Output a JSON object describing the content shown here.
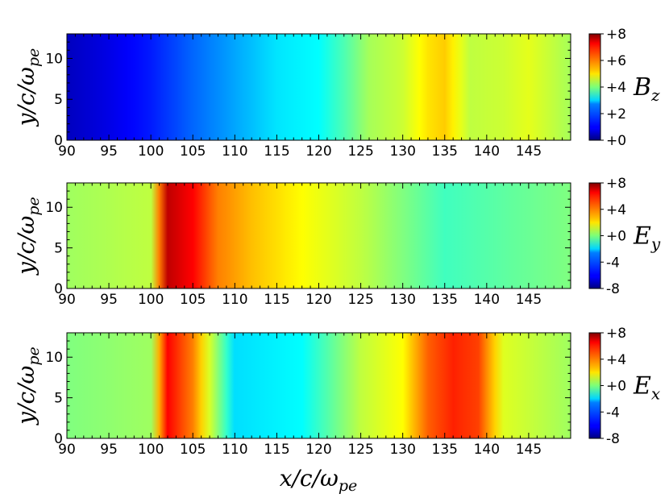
{
  "chart_data": [
    {
      "type": "heatmap",
      "quantity": "Bz",
      "colorbar_label": {
        "base": "B",
        "sub": "z"
      },
      "ylabel": "y/c/ωpe",
      "xlim": [
        90,
        150
      ],
      "ylim": [
        0,
        13
      ],
      "x_ticks": [
        "90",
        "95",
        "100",
        "105",
        "110",
        "115",
        "120",
        "125",
        "130",
        "135",
        "140",
        "145"
      ],
      "y_ticks": [
        "0",
        "5",
        "10"
      ],
      "colorbar_range": [
        0,
        8
      ],
      "colorbar_ticks": [
        "+0",
        "+2",
        "+4",
        "+6",
        "+8"
      ],
      "colormap": "jet",
      "profile_x": [
        90,
        95,
        100,
        105,
        110,
        115,
        120,
        123,
        126,
        130,
        133,
        135,
        138,
        142,
        145,
        150
      ],
      "profile_value": [
        0.5,
        0.8,
        1.2,
        1.8,
        2.3,
        2.8,
        3.0,
        3.6,
        4.3,
        4.6,
        5.2,
        5.4,
        4.5,
        4.6,
        4.8,
        4.3
      ]
    },
    {
      "type": "heatmap",
      "quantity": "Ey",
      "colorbar_label": {
        "base": "E",
        "sub": "y"
      },
      "ylabel": "y/c/ωpe",
      "xlim": [
        90,
        150
      ],
      "ylim": [
        0,
        13
      ],
      "x_ticks": [
        "90",
        "95",
        "100",
        "105",
        "110",
        "115",
        "120",
        "125",
        "130",
        "135",
        "140",
        "145"
      ],
      "y_ticks": [
        "0",
        "5",
        "10"
      ],
      "colorbar_range": [
        -8,
        8
      ],
      "colorbar_ticks": [
        "+8",
        "+4",
        "+0",
        "-4",
        "-8"
      ],
      "colormap": "jet",
      "profile_x": [
        90,
        100,
        102,
        105,
        108,
        112,
        118,
        125,
        135,
        150
      ],
      "profile_value": [
        0.5,
        1.0,
        7.0,
        6.0,
        4.0,
        3.0,
        2.0,
        1.0,
        -1.0,
        0.0
      ]
    },
    {
      "type": "heatmap",
      "quantity": "Ex",
      "colorbar_label": {
        "base": "E",
        "sub": "x"
      },
      "ylabel": "y/c/ωpe",
      "xlabel": "x/c/ωpe",
      "xlim": [
        90,
        150
      ],
      "ylim": [
        0,
        13
      ],
      "x_ticks": [
        "90",
        "95",
        "100",
        "105",
        "110",
        "115",
        "120",
        "125",
        "130",
        "135",
        "140",
        "145"
      ],
      "y_ticks": [
        "0",
        "5",
        "10"
      ],
      "colorbar_range": [
        -8,
        8
      ],
      "colorbar_ticks": [
        "+8",
        "+4",
        "+0",
        "-4",
        "-8"
      ],
      "colormap": "jet",
      "profile_x": [
        90,
        100,
        102,
        105,
        110,
        118,
        125,
        130,
        133,
        136,
        139,
        142,
        150
      ],
      "profile_value": [
        0.0,
        0.5,
        6.0,
        4.0,
        -2.5,
        -2.0,
        1.0,
        2.0,
        4.5,
        5.5,
        5.0,
        1.5,
        0.5
      ]
    }
  ]
}
